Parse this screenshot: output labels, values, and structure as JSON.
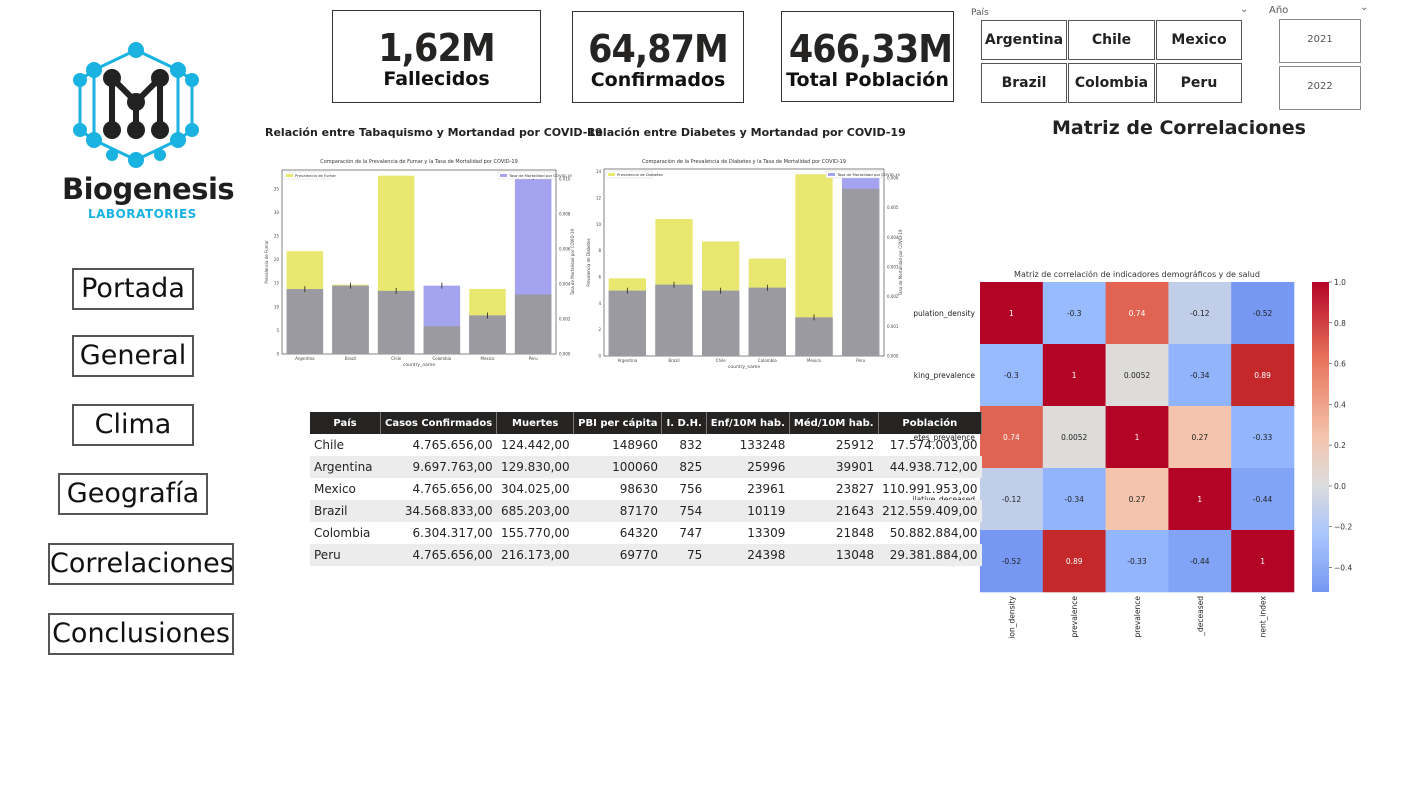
{
  "brand": {
    "name": "Biogenesis",
    "sub": "LABORATORIES"
  },
  "nav": [
    "Portada",
    "General",
    "Clima",
    "Geografía",
    "Correlaciones",
    "Conclusiones"
  ],
  "kpis": [
    {
      "value": "1,62M",
      "label": "Fallecidos"
    },
    {
      "value": "64,87M",
      "label": "Confirmados"
    },
    {
      "value": "466,33M",
      "label": "Total Población"
    }
  ],
  "slicer_pais": {
    "title": "País",
    "options": [
      "Argentina",
      "Chile",
      "Mexico",
      "Brazil",
      "Colombia",
      "Peru"
    ]
  },
  "slicer_anio": {
    "title": "Año",
    "options": [
      "2021",
      "2022"
    ]
  },
  "chart_titles": {
    "smoking": "Relación entre Tabaquismo y Mortandad por COVID-19",
    "diabetes": "Relación entre Diabetes y Mortandad por COVID-19",
    "matrix": "Matriz de Correlaciones"
  },
  "table": {
    "headers": [
      "País",
      "Casos Confirmados",
      "Muertes",
      "PBI per cápita",
      "I. D.H.",
      "Enf/10M hab.",
      "Méd/10M hab.",
      "Población"
    ],
    "rows": [
      [
        "Chile",
        "4.765.656,00",
        "124.442,00",
        "148960",
        "832",
        "133248",
        "25912",
        "17.574.003,00"
      ],
      [
        "Argentina",
        "9.697.763,00",
        "129.830,00",
        "100060",
        "825",
        "25996",
        "39901",
        "44.938.712,00"
      ],
      [
        "Mexico",
        "4.765.656,00",
        "304.025,00",
        "98630",
        "756",
        "23961",
        "23827",
        "110.991.953,00"
      ],
      [
        "Brazil",
        "34.568.833,00",
        "685.203,00",
        "87170",
        "754",
        "10119",
        "21643",
        "212.559.409,00"
      ],
      [
        "Colombia",
        "6.304.317,00",
        "155.770,00",
        "64320",
        "747",
        "13309",
        "21848",
        "50.882.884,00"
      ],
      [
        "Peru",
        "4.765.656,00",
        "216.173,00",
        "69770",
        "75",
        "24398",
        "13048",
        "29.381.884,00"
      ]
    ]
  },
  "chart_data": [
    {
      "type": "bar",
      "title": "Comparación de la Prevalencia de Fumar y la Tasa de Mortalidad por COVID-19",
      "xlabel": "country_name",
      "ylabel": "Prevalencia de Fumar",
      "y2label": "Tasa de Mortalidad por COVID-19",
      "categories": [
        "Argentina",
        "Brazil",
        "Chile",
        "Colombia",
        "Mexico",
        "Peru"
      ],
      "ylim": [
        0,
        39
      ],
      "y2lim": [
        0,
        0.0105
      ],
      "yticks": [
        "0",
        "5",
        "10",
        "15",
        "20",
        "25",
        "30",
        "35"
      ],
      "y2ticks": [
        "0.000",
        "0.002",
        "0.004",
        "0.006",
        "0.008",
        "0.010"
      ],
      "series": [
        {
          "name": "Prevalencia de Fumar",
          "color": "#e8e870",
          "values": [
            21.8,
            14.7,
            37.8,
            5.9,
            13.8,
            12.6
          ]
        },
        {
          "name": "Tasa de Mortalidad por COVID-19",
          "color": "#a3a3ef",
          "values": [
            0.0037,
            0.0039,
            0.0036,
            0.0039,
            0.0022,
            0.0101
          ]
        }
      ]
    },
    {
      "type": "bar",
      "title": "Comparación de la Prevalencia de Diabetes y la Tasa de Mortalidad por COVID-19",
      "xlabel": "country_name",
      "ylabel": "Prevalencia de Diabetes",
      "y2label": "Tasa de Mortalidad por COVID-19",
      "categories": [
        "Argentina",
        "Brazil",
        "Chile",
        "Colombia",
        "Mexico",
        "Peru"
      ],
      "ylim": [
        0,
        14.2
      ],
      "y2lim": [
        0,
        0.0063
      ],
      "yticks": [
        "0",
        "2",
        "4",
        "6",
        "8",
        "10",
        "12",
        "14"
      ],
      "y2ticks": [
        "0.000",
        "0.001",
        "0.002",
        "0.003",
        "0.004",
        "0.005",
        "0.006"
      ],
      "series": [
        {
          "name": "Prevalencia de Diabetes",
          "color": "#e8e870",
          "values": [
            5.9,
            10.4,
            8.7,
            7.4,
            13.8,
            12.7
          ]
        },
        {
          "name": "Tasa de Mortalidad por COVID-19",
          "color": "#a3a3ef",
          "values": [
            0.0022,
            0.0024,
            0.0022,
            0.0023,
            0.0013,
            0.0061
          ]
        }
      ]
    },
    {
      "type": "heatmap",
      "title": "Matriz de correlación de indicadores demográficos y de salud",
      "row_labels": [
        "pulation_density",
        "king_prevalence",
        "etes_prevalence",
        "ilative_deceased",
        "velopment_index"
      ],
      "col_labels": [
        "ion_density",
        "prevalence",
        "prevalence",
        "_deceased",
        "nent_index"
      ],
      "values": [
        [
          1,
          -0.3,
          0.74,
          -0.12,
          -0.52
        ],
        [
          -0.3,
          1,
          0.0052,
          -0.34,
          0.89
        ],
        [
          0.74,
          0.0052,
          1,
          0.27,
          -0.33
        ],
        [
          -0.12,
          -0.34,
          0.27,
          1,
          -0.44
        ],
        [
          -0.52,
          0.89,
          -0.33,
          -0.44,
          1
        ]
      ],
      "labels": [
        [
          "1",
          "-0.3",
          "0.74",
          "-0.12",
          "-0.52"
        ],
        [
          "-0.3",
          "1",
          "0.0052",
          "-0.34",
          "0.89"
        ],
        [
          "0.74",
          "0.0052",
          "1",
          "0.27",
          "-0.33"
        ],
        [
          "-0.12",
          "-0.34",
          "0.27",
          "1",
          "-0.44"
        ],
        [
          "-0.52",
          "0.89",
          "-0.33",
          "-0.44",
          "1"
        ]
      ],
      "colorbar_ticks": [
        "1.0",
        "0.8",
        "0.6",
        "0.4",
        "0.2",
        "0.0",
        "−0.2",
        "−0.4"
      ],
      "colormap": "coolwarm"
    }
  ]
}
